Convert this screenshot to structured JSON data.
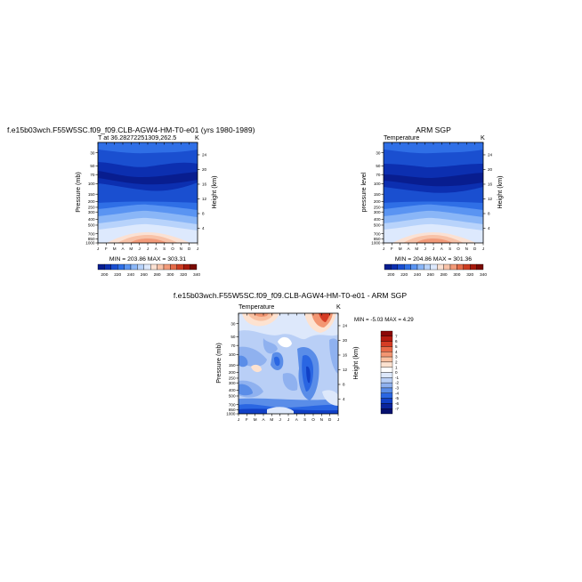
{
  "panels": {
    "model": {
      "title": "f.e15b03wch.F55W5SC.f09_f09.CLB-AGW4-HM-T0-e01 (yrs 1980-1989)",
      "subtitle": "T at 36.28272251309,262.5",
      "units": "K",
      "ylabel_left": "Pressure (mb)",
      "ylabel_right": "Height (km)",
      "minmax": "MIN = 203.86  MAX = 303.31"
    },
    "obs": {
      "title": "ARM SGP",
      "subtitle": "Temperature",
      "units": "K",
      "ylabel_left": "pressure level",
      "ylabel_right": "Height (km)",
      "minmax": "MIN = 204.86  MAX = 301.36"
    },
    "diff": {
      "title": "f.e15b03wch.F55W5SC.f09_f09.CLB-AGW4-HM-T0-e01 - ARM SGP",
      "subtitle": "Temperature",
      "units": "K",
      "ylabel_left": "Pressure (mb)",
      "ylabel_right": "Height (km)",
      "minmax": "MIN =  -5.03  MAX =    4.29"
    }
  },
  "colors": {
    "temperature_scale": [
      "#081d8f",
      "#0c2fb0",
      "#1a4fd0",
      "#2f6fe6",
      "#5a94f2",
      "#8ab6f7",
      "#b8d3fb",
      "#dde9fd",
      "#fbe1d3",
      "#f8c2a8",
      "#f29a79",
      "#e56c4a",
      "#cc3d22",
      "#a61a0c",
      "#7a0a03"
    ],
    "diff_scale": [
      "#06106e",
      "#0a249c",
      "#1140c6",
      "#2a66e2",
      "#5a8de8",
      "#8fb1ef",
      "#b9cff6",
      "#dde8fb",
      "#ffffff",
      "#fde2d0",
      "#f9c1a2",
      "#f39672",
      "#e96a48",
      "#d53c25",
      "#b51a10",
      "#8b0606"
    ]
  },
  "chart_data": [
    {
      "type": "heatmap",
      "name": "model",
      "x": [
        "J",
        "F",
        "M",
        "A",
        "M",
        "J",
        "J",
        "A",
        "S",
        "O",
        "N",
        "D",
        "J"
      ],
      "y_pressure_ticks": [
        30,
        50,
        70,
        100,
        150,
        200,
        250,
        300,
        400,
        500,
        700,
        850,
        1000
      ],
      "y_height_ticks": [
        4,
        8,
        12,
        16,
        20,
        24
      ],
      "colorbar_labels": [
        200,
        220,
        240,
        260,
        280,
        300,
        320,
        340
      ],
      "min": 203.86,
      "max": 303.31
    },
    {
      "type": "heatmap",
      "name": "obs",
      "x": [
        "J",
        "F",
        "M",
        "A",
        "M",
        "J",
        "J",
        "A",
        "S",
        "O",
        "N",
        "D",
        "J"
      ],
      "y_pressure_ticks": [
        30,
        50,
        70,
        100,
        150,
        200,
        250,
        300,
        400,
        500,
        700,
        850,
        1000
      ],
      "y_height_ticks": [
        4,
        8,
        12,
        16,
        20,
        24
      ],
      "colorbar_labels": [
        200,
        220,
        240,
        260,
        280,
        300,
        320,
        340
      ],
      "min": 204.86,
      "max": 301.36
    },
    {
      "type": "heatmap",
      "name": "diff",
      "x": [
        "J",
        "F",
        "M",
        "A",
        "M",
        "J",
        "J",
        "A",
        "S",
        "O",
        "N",
        "D",
        "J"
      ],
      "y_pressure_ticks": [
        30,
        50,
        70,
        100,
        150,
        200,
        250,
        300,
        400,
        500,
        700,
        850,
        1000
      ],
      "y_height_ticks": [
        4,
        8,
        12,
        16,
        20,
        24
      ],
      "colorbar_labels": [
        7,
        6,
        5,
        4,
        3,
        2,
        1,
        0,
        -1,
        -2,
        -3,
        -4,
        -5,
        -6,
        -7
      ],
      "min": -5.03,
      "max": 4.29
    }
  ]
}
